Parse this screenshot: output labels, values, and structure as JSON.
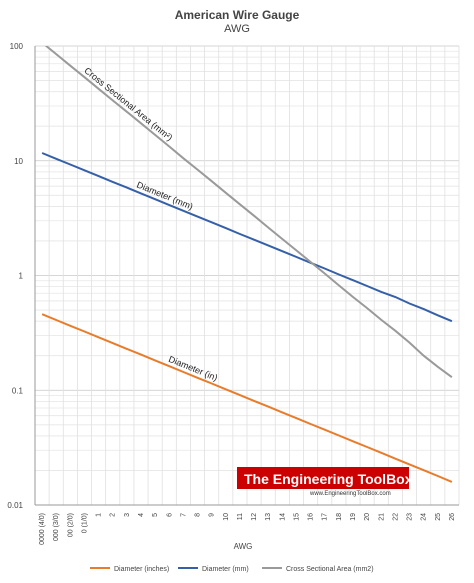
{
  "chart_data": {
    "type": "line",
    "title": "American Wire Gauge",
    "subtitle": "AWG",
    "xlabel": "AWG",
    "ylabel": "",
    "yscale": "log",
    "ylim": [
      0.01,
      100
    ],
    "yticks": [
      "0.01",
      "0.1",
      "1",
      "10",
      "100"
    ],
    "grid": true,
    "legend": "bottom",
    "categories": [
      "0000 (4/0)",
      "000 (3/0)",
      "00 (2/0)",
      "0 (1/0)",
      "1",
      "2",
      "3",
      "4",
      "5",
      "6",
      "7",
      "8",
      "9",
      "10",
      "11",
      "12",
      "13",
      "14",
      "15",
      "16",
      "17",
      "18",
      "19",
      "20",
      "21",
      "22",
      "23",
      "24",
      "25",
      "26"
    ],
    "series": [
      {
        "name": "Diameter (inches)",
        "label": "Diameter (in)",
        "color": "#e87c2a",
        "values": [
          0.46,
          0.4096,
          0.3648,
          0.3249,
          0.2893,
          0.2576,
          0.2294,
          0.2043,
          0.1819,
          0.162,
          0.1443,
          0.1285,
          0.1144,
          0.1019,
          0.0907,
          0.0808,
          0.072,
          0.0641,
          0.0571,
          0.0508,
          0.0453,
          0.0403,
          0.0359,
          0.032,
          0.0285,
          0.0253,
          0.0226,
          0.0201,
          0.0179,
          0.0159
        ]
      },
      {
        "name": "Diameter (mm)",
        "label": "Diameter (mm)",
        "color": "#3560a8",
        "values": [
          11.68,
          10.4,
          9.27,
          8.25,
          7.35,
          6.54,
          5.83,
          5.19,
          4.62,
          4.11,
          3.66,
          3.26,
          2.91,
          2.59,
          2.3,
          2.05,
          1.83,
          1.63,
          1.45,
          1.29,
          1.15,
          1.02,
          0.91,
          0.81,
          0.72,
          0.65,
          0.57,
          0.51,
          0.45,
          0.4
        ]
      },
      {
        "name": "Cross Sectional Area (mm2)",
        "label": "Cross Sectional Area (mm²)",
        "color": "#9a9a9a",
        "values": [
          107,
          85,
          67.4,
          53.5,
          42.4,
          33.6,
          26.7,
          21.2,
          16.8,
          13.3,
          10.5,
          8.37,
          6.63,
          5.26,
          4.17,
          3.31,
          2.62,
          2.08,
          1.65,
          1.31,
          1.04,
          0.82,
          0.65,
          0.52,
          0.41,
          0.33,
          0.26,
          0.2,
          0.16,
          0.13
        ]
      }
    ]
  },
  "watermark": {
    "title": "The Engineering ToolBox",
    "url": "www.EngineeringToolBox.com",
    "colors": {
      "background": "#cc0000",
      "text": "#ffffff"
    }
  }
}
